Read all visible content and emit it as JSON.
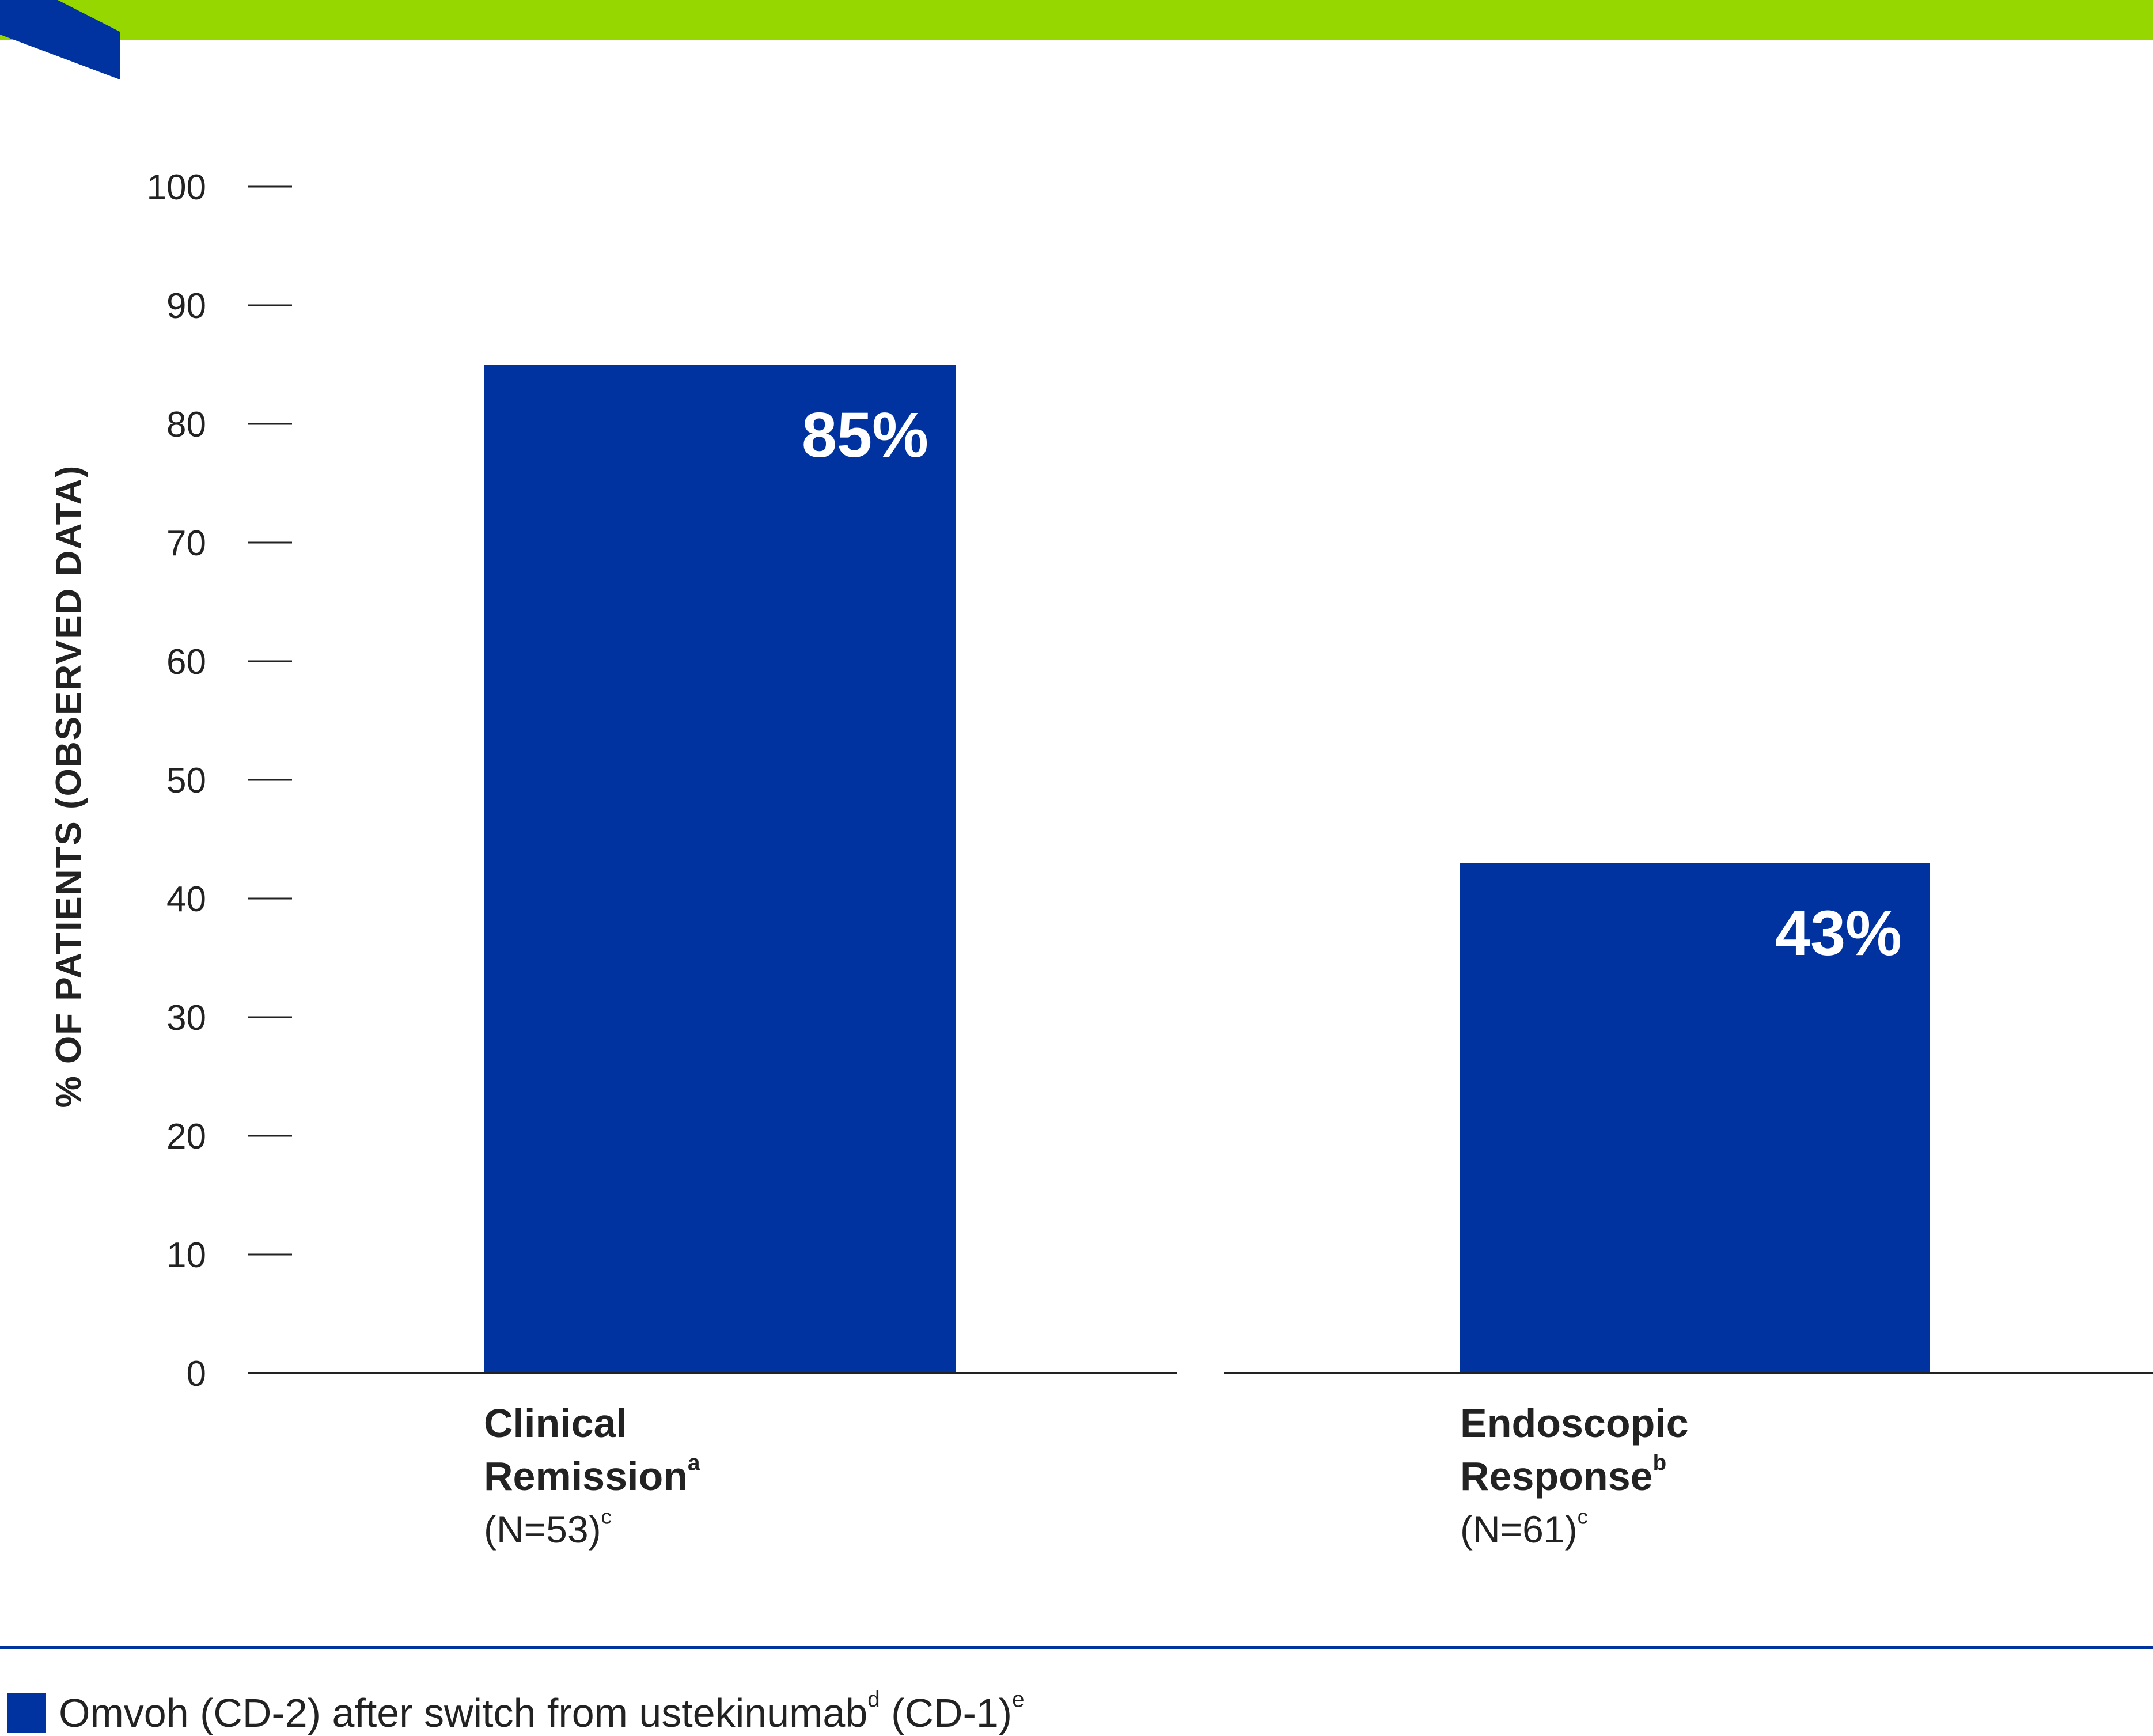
{
  "colors": {
    "accent_green": "#97d700",
    "brand_blue": "#0033a0",
    "axis": "#222222"
  },
  "chart_data": {
    "type": "bar",
    "ylabel": "% OF PATIENTS (OBSERVED DATA)",
    "ylim": [
      0,
      100
    ],
    "yticks": [
      0,
      10,
      20,
      30,
      40,
      50,
      60,
      70,
      80,
      90,
      100
    ],
    "categories": [
      {
        "line1": "Clinical",
        "line2": "Remission",
        "line2_sup": "a",
        "n": "(N=53)",
        "n_sup": "c"
      },
      {
        "line1": "Endoscopic",
        "line2": "Response",
        "line2_sup": "b",
        "n": "(N=61)",
        "n_sup": "c"
      }
    ],
    "series": [
      {
        "name": "Omvoh (CD-2) after switch from ustekinumab (CD-1)",
        "values": [
          85,
          43
        ],
        "labels": [
          "85%",
          "43%"
        ],
        "color": "#0033a0"
      }
    ],
    "legend": {
      "position": "bottom-left",
      "text_a": "Omvoh (CD-2) after switch from ustekinumab",
      "sup_a": "d",
      "text_b": " (CD-1)",
      "sup_b": "e"
    }
  }
}
